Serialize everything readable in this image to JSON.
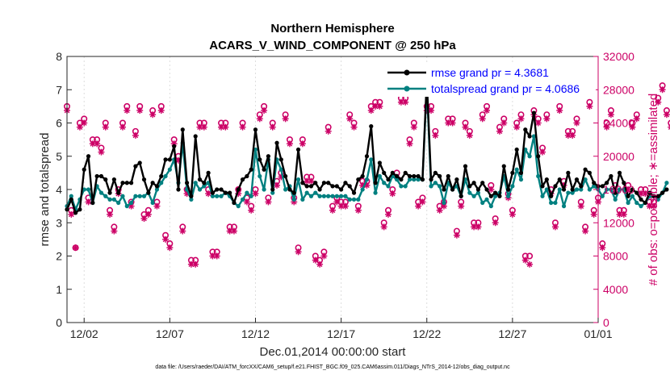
{
  "chart_data": {
    "type": "line",
    "title": [
      "Northern Hemisphere",
      "ACARS_V_WIND_COMPONENT @ 250 hPa"
    ],
    "xlabel": "Dec.01,2014 00:00:00 start",
    "ylabel_left": "rmse and totalspread",
    "ylabel_right": "# of obs: o=possible; ∗=assimilated",
    "ylim_left": [
      0,
      8
    ],
    "ylim_right": [
      0,
      32000
    ],
    "xlim_days": [
      0.5,
      31.5
    ],
    "x_ticks": [
      {
        "day": 1.5,
        "label": "12/02"
      },
      {
        "day": 6.5,
        "label": "12/07"
      },
      {
        "day": 11.5,
        "label": "12/12"
      },
      {
        "day": 16.5,
        "label": "12/17"
      },
      {
        "day": 21.5,
        "label": "12/22"
      },
      {
        "day": 26.5,
        "label": "12/27"
      },
      {
        "day": 31.5,
        "label": "01/01"
      }
    ],
    "y_ticks_left": [
      "0",
      "1",
      "2",
      "3",
      "4",
      "5",
      "6",
      "7",
      "8"
    ],
    "y_ticks_right": [
      "0",
      "4000",
      "8000",
      "12000",
      "16000",
      "20000",
      "24000",
      "28000",
      "32000"
    ],
    "x_start_day": 0.5,
    "x_step_day": 0.25,
    "series": [
      {
        "name": "rmse grand pr = 4.3681",
        "color": "#000000",
        "marker": "dot",
        "values": [
          3.4,
          3.7,
          3.3,
          3.4,
          4.6,
          5.0,
          3.6,
          4.4,
          4.4,
          4.3,
          3.9,
          4.3,
          3.9,
          4.2,
          4.2,
          4.2,
          4.7,
          4.8,
          4.3,
          3.9,
          4.2,
          4.1,
          4.4,
          4.9,
          4.9,
          5.3,
          4.0,
          5.8,
          4.2,
          3.8,
          5.6,
          4.3,
          4.2,
          4.5,
          3.9,
          4.0,
          4.0,
          3.9,
          3.9,
          3.6,
          4.0,
          4.3,
          4.4,
          4.6,
          5.8,
          4.9,
          4.6,
          5.0,
          4.0,
          5.4,
          4.9,
          4.4,
          4.0,
          3.9,
          5.2,
          4.2,
          4.1,
          4.1,
          4.2,
          4.0,
          4.2,
          4.2,
          4.1,
          4.1,
          4.0,
          4.2,
          4.1,
          3.9,
          4.3,
          4.4,
          5.0,
          5.9,
          4.2,
          4.8,
          4.5,
          4.3,
          4.5,
          4.4,
          4.3,
          4.5,
          4.4,
          4.4,
          4.4,
          4.3,
          7.3,
          4.3,
          4.5,
          4.4,
          4.0,
          4.4,
          4.0,
          4.3,
          3.8,
          4.7,
          4.1,
          4.2,
          4.0,
          4.2,
          4.0,
          3.8,
          3.9,
          3.8,
          4.7,
          4.0,
          4.5,
          5.2,
          4.5,
          5.8,
          5.6,
          6.3,
          5.0,
          4.1,
          4.3,
          3.8,
          4.1,
          4.3,
          4.0,
          4.5,
          4.0,
          4.3,
          4.1,
          4.6,
          4.5,
          4.2,
          4.1,
          4.1,
          4.2,
          4.4,
          3.9,
          4.5,
          4.2,
          3.8,
          4.0,
          3.9,
          3.7,
          3.6,
          3.9,
          3.8,
          3.8,
          3.9,
          4.0
        ]
      },
      {
        "name": "totalspread grand pr = 4.0686",
        "color": "#008080",
        "marker": "dot",
        "values": [
          3.5,
          3.8,
          3.4,
          3.7,
          4.0,
          4.0,
          3.6,
          4.1,
          3.9,
          3.8,
          3.7,
          3.7,
          3.6,
          3.8,
          3.5,
          3.6,
          3.8,
          3.8,
          3.8,
          3.9,
          3.6,
          4.0,
          4.2,
          4.4,
          4.6,
          4.9,
          4.2,
          5.4,
          4.0,
          3.7,
          4.2,
          4.0,
          4.1,
          4.2,
          3.8,
          3.8,
          3.8,
          3.9,
          3.8,
          3.6,
          3.5,
          3.7,
          3.9,
          3.8,
          5.2,
          4.4,
          4.0,
          4.9,
          3.9,
          4.9,
          4.6,
          4.0,
          4.1,
          3.7,
          4.3,
          3.7,
          3.9,
          3.8,
          3.9,
          3.8,
          3.8,
          3.8,
          3.8,
          3.8,
          3.8,
          3.8,
          3.7,
          3.7,
          3.7,
          4.0,
          4.3,
          4.9,
          3.9,
          4.4,
          4.2,
          4.1,
          4.4,
          4.3,
          4.1,
          4.1,
          4.3,
          4.3,
          4.3,
          4.3,
          7.1,
          4.1,
          4.2,
          4.1,
          3.6,
          4.2,
          4.0,
          4.1,
          3.8,
          4.3,
          3.9,
          3.8,
          3.9,
          3.6,
          3.7,
          3.5,
          3.8,
          3.9,
          4.4,
          3.8,
          4.1,
          4.6,
          4.3,
          5.2,
          5.0,
          5.6,
          4.4,
          3.8,
          4.0,
          3.6,
          3.6,
          4.0,
          3.5,
          3.9,
          3.9,
          4.0,
          4.0,
          4.3,
          4.0,
          4.1,
          4.0,
          3.8,
          4.0,
          4.0,
          3.7,
          4.0,
          4.0,
          3.6,
          3.8,
          3.6,
          3.5,
          3.6,
          3.8,
          3.8,
          3.7,
          3.9,
          4.2
        ]
      },
      {
        "name": "possible",
        "axis": "right",
        "color": "#cc0066",
        "marker": "o",
        "values": [
          26000,
          13500,
          9000,
          24000,
          24500,
          15000,
          22000,
          22000,
          21000,
          24000,
          13500,
          11500,
          16000,
          24000,
          26000,
          14500,
          23000,
          26000,
          13000,
          13500,
          25500,
          14500,
          26000,
          10500,
          9500,
          22000,
          20000,
          11500,
          16000,
          7500,
          7500,
          24000,
          24000,
          16000,
          8500,
          8500,
          24000,
          24000,
          11500,
          11500,
          16000,
          24000,
          15000,
          14000,
          16000,
          25000,
          26000,
          15000,
          24000,
          17000,
          18000,
          25000,
          22000,
          15000,
          9000,
          22000,
          17500,
          17500,
          8000,
          7500,
          8500,
          23500,
          14000,
          15000,
          14500,
          14500,
          25000,
          24000,
          14000,
          17000,
          17000,
          26000,
          26500,
          26500,
          12000,
          13500,
          16000,
          18000,
          27000,
          27000,
          22000,
          24000,
          14500,
          15000,
          26000,
          26000,
          23000,
          14000,
          14500,
          24500,
          24500,
          11000,
          14500,
          24000,
          23000,
          12000,
          12000,
          25000,
          26000,
          16500,
          12500,
          23500,
          24500,
          15500,
          13500,
          24000,
          25000,
          8000,
          8000,
          25500,
          24500,
          21000,
          25000,
          16000,
          12000,
          26000,
          17000,
          23000,
          23000,
          24500,
          14500,
          11500,
          26500,
          13500,
          15000,
          9500,
          24000,
          25500,
          16500,
          13500,
          13500,
          16500,
          24000,
          25000,
          16000,
          16000,
          14500,
          14500,
          27000,
          28500,
          25500,
          24000,
          15000,
          12000,
          11500
        ]
      },
      {
        "name": "assimilated",
        "axis": "right",
        "color": "#cc0066",
        "marker": "*",
        "values": [
          25500,
          13000,
          9000,
          23500,
          24000,
          14500,
          21500,
          21500,
          20500,
          23500,
          13000,
          11000,
          15500,
          23500,
          25500,
          14000,
          22500,
          25500,
          12500,
          13000,
          25000,
          14000,
          25500,
          10000,
          9000,
          21500,
          19500,
          11000,
          15500,
          7000,
          7000,
          23500,
          23500,
          15500,
          8000,
          8000,
          23500,
          23500,
          11000,
          11000,
          15500,
          23500,
          14500,
          13500,
          15500,
          24500,
          25500,
          14500,
          23500,
          16500,
          17500,
          24500,
          21500,
          14500,
          8500,
          21500,
          17000,
          17000,
          7500,
          7000,
          8000,
          23000,
          13500,
          14500,
          14000,
          14000,
          24500,
          23500,
          13500,
          16500,
          16500,
          25500,
          26000,
          26000,
          11500,
          13000,
          15500,
          17500,
          26500,
          26500,
          21500,
          23500,
          14000,
          14500,
          25500,
          25500,
          22500,
          13500,
          14000,
          24000,
          24000,
          10500,
          14000,
          23500,
          22500,
          11500,
          11500,
          24500,
          25500,
          16000,
          12000,
          23000,
          24000,
          15000,
          13000,
          23500,
          24500,
          7500,
          7000,
          25000,
          24000,
          20500,
          24500,
          15500,
          11500,
          25500,
          16500,
          22500,
          22500,
          24000,
          14000,
          11000,
          26000,
          13000,
          14500,
          9000,
          23500,
          25000,
          16000,
          13000,
          13000,
          16000,
          23500,
          24500,
          15500,
          15500,
          14000,
          14000,
          26500,
          28000,
          25000,
          23500,
          14500,
          11500,
          0
        ]
      }
    ]
  },
  "legend": {
    "rmse": "rmse grand pr = 4.3681",
    "spread": "totalspread grand pr = 4.0686"
  },
  "footnote": "data file: /Users/raeder/DAI/ATM_forcXX/CAM6_setup/f.e21.FHIST_BGC.f09_025.CAM6assim.011/Diags_NTrS_2014-12/obs_diag_output.nc",
  "colors": {
    "accent_right": "#cc0066",
    "rmse": "#000000",
    "spread": "#008080",
    "legend_text": "#0000ff"
  }
}
